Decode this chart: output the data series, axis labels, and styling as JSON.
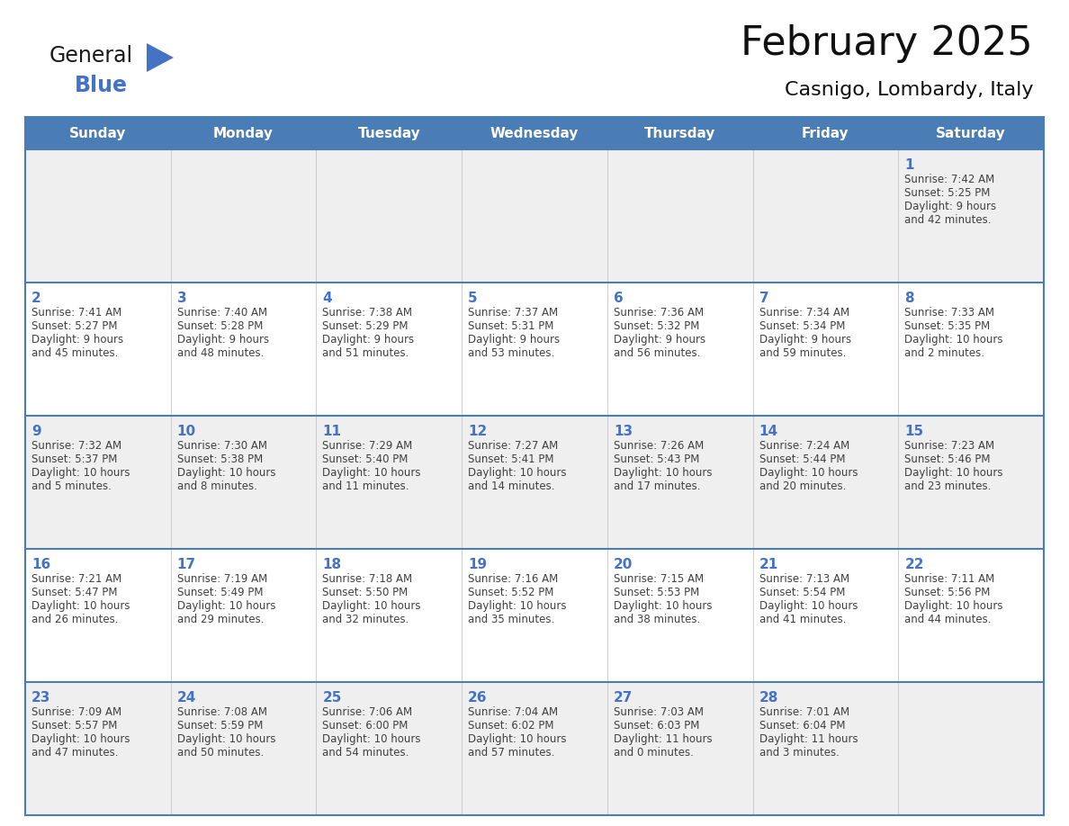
{
  "title": "February 2025",
  "subtitle": "Casnigo, Lombardy, Italy",
  "days_of_week": [
    "Sunday",
    "Monday",
    "Tuesday",
    "Wednesday",
    "Thursday",
    "Friday",
    "Saturday"
  ],
  "header_bg": "#4A7CB5",
  "header_text": "#FFFFFF",
  "row_bg_odd": "#EFEFEF",
  "row_bg_even": "#FFFFFF",
  "day_number_color": "#4472C4",
  "text_color": "#404040",
  "border_color": "#4A7CB5",
  "cell_border_color": "#4A7CB5",
  "calendar_data": [
    [
      null,
      null,
      null,
      null,
      null,
      null,
      {
        "day": 1,
        "sunrise": "7:42 AM",
        "sunset": "5:25 PM",
        "daylight": "9 hours",
        "daylight2": "and 42 minutes."
      }
    ],
    [
      {
        "day": 2,
        "sunrise": "7:41 AM",
        "sunset": "5:27 PM",
        "daylight": "9 hours",
        "daylight2": "and 45 minutes."
      },
      {
        "day": 3,
        "sunrise": "7:40 AM",
        "sunset": "5:28 PM",
        "daylight": "9 hours",
        "daylight2": "and 48 minutes."
      },
      {
        "day": 4,
        "sunrise": "7:38 AM",
        "sunset": "5:29 PM",
        "daylight": "9 hours",
        "daylight2": "and 51 minutes."
      },
      {
        "day": 5,
        "sunrise": "7:37 AM",
        "sunset": "5:31 PM",
        "daylight": "9 hours",
        "daylight2": "and 53 minutes."
      },
      {
        "day": 6,
        "sunrise": "7:36 AM",
        "sunset": "5:32 PM",
        "daylight": "9 hours",
        "daylight2": "and 56 minutes."
      },
      {
        "day": 7,
        "sunrise": "7:34 AM",
        "sunset": "5:34 PM",
        "daylight": "9 hours",
        "daylight2": "and 59 minutes."
      },
      {
        "day": 8,
        "sunrise": "7:33 AM",
        "sunset": "5:35 PM",
        "daylight": "10 hours",
        "daylight2": "and 2 minutes."
      }
    ],
    [
      {
        "day": 9,
        "sunrise": "7:32 AM",
        "sunset": "5:37 PM",
        "daylight": "10 hours",
        "daylight2": "and 5 minutes."
      },
      {
        "day": 10,
        "sunrise": "7:30 AM",
        "sunset": "5:38 PM",
        "daylight": "10 hours",
        "daylight2": "and 8 minutes."
      },
      {
        "day": 11,
        "sunrise": "7:29 AM",
        "sunset": "5:40 PM",
        "daylight": "10 hours",
        "daylight2": "and 11 minutes."
      },
      {
        "day": 12,
        "sunrise": "7:27 AM",
        "sunset": "5:41 PM",
        "daylight": "10 hours",
        "daylight2": "and 14 minutes."
      },
      {
        "day": 13,
        "sunrise": "7:26 AM",
        "sunset": "5:43 PM",
        "daylight": "10 hours",
        "daylight2": "and 17 minutes."
      },
      {
        "day": 14,
        "sunrise": "7:24 AM",
        "sunset": "5:44 PM",
        "daylight": "10 hours",
        "daylight2": "and 20 minutes."
      },
      {
        "day": 15,
        "sunrise": "7:23 AM",
        "sunset": "5:46 PM",
        "daylight": "10 hours",
        "daylight2": "and 23 minutes."
      }
    ],
    [
      {
        "day": 16,
        "sunrise": "7:21 AM",
        "sunset": "5:47 PM",
        "daylight": "10 hours",
        "daylight2": "and 26 minutes."
      },
      {
        "day": 17,
        "sunrise": "7:19 AM",
        "sunset": "5:49 PM",
        "daylight": "10 hours",
        "daylight2": "and 29 minutes."
      },
      {
        "day": 18,
        "sunrise": "7:18 AM",
        "sunset": "5:50 PM",
        "daylight": "10 hours",
        "daylight2": "and 32 minutes."
      },
      {
        "day": 19,
        "sunrise": "7:16 AM",
        "sunset": "5:52 PM",
        "daylight": "10 hours",
        "daylight2": "and 35 minutes."
      },
      {
        "day": 20,
        "sunrise": "7:15 AM",
        "sunset": "5:53 PM",
        "daylight": "10 hours",
        "daylight2": "and 38 minutes."
      },
      {
        "day": 21,
        "sunrise": "7:13 AM",
        "sunset": "5:54 PM",
        "daylight": "10 hours",
        "daylight2": "and 41 minutes."
      },
      {
        "day": 22,
        "sunrise": "7:11 AM",
        "sunset": "5:56 PM",
        "daylight": "10 hours",
        "daylight2": "and 44 minutes."
      }
    ],
    [
      {
        "day": 23,
        "sunrise": "7:09 AM",
        "sunset": "5:57 PM",
        "daylight": "10 hours",
        "daylight2": "and 47 minutes."
      },
      {
        "day": 24,
        "sunrise": "7:08 AM",
        "sunset": "5:59 PM",
        "daylight": "10 hours",
        "daylight2": "and 50 minutes."
      },
      {
        "day": 25,
        "sunrise": "7:06 AM",
        "sunset": "6:00 PM",
        "daylight": "10 hours",
        "daylight2": "and 54 minutes."
      },
      {
        "day": 26,
        "sunrise": "7:04 AM",
        "sunset": "6:02 PM",
        "daylight": "10 hours",
        "daylight2": "and 57 minutes."
      },
      {
        "day": 27,
        "sunrise": "7:03 AM",
        "sunset": "6:03 PM",
        "daylight": "11 hours",
        "daylight2": "and 0 minutes."
      },
      {
        "day": 28,
        "sunrise": "7:01 AM",
        "sunset": "6:04 PM",
        "daylight": "11 hours",
        "daylight2": "and 3 minutes."
      },
      null
    ]
  ],
  "logo_text_general": "General",
  "logo_text_blue": "Blue",
  "logo_color_general": "#1a1a1a",
  "logo_color_blue": "#4472C4",
  "title_fontsize": 32,
  "subtitle_fontsize": 16,
  "header_fontsize": 11,
  "day_num_fontsize": 11,
  "cell_text_fontsize": 8.5
}
